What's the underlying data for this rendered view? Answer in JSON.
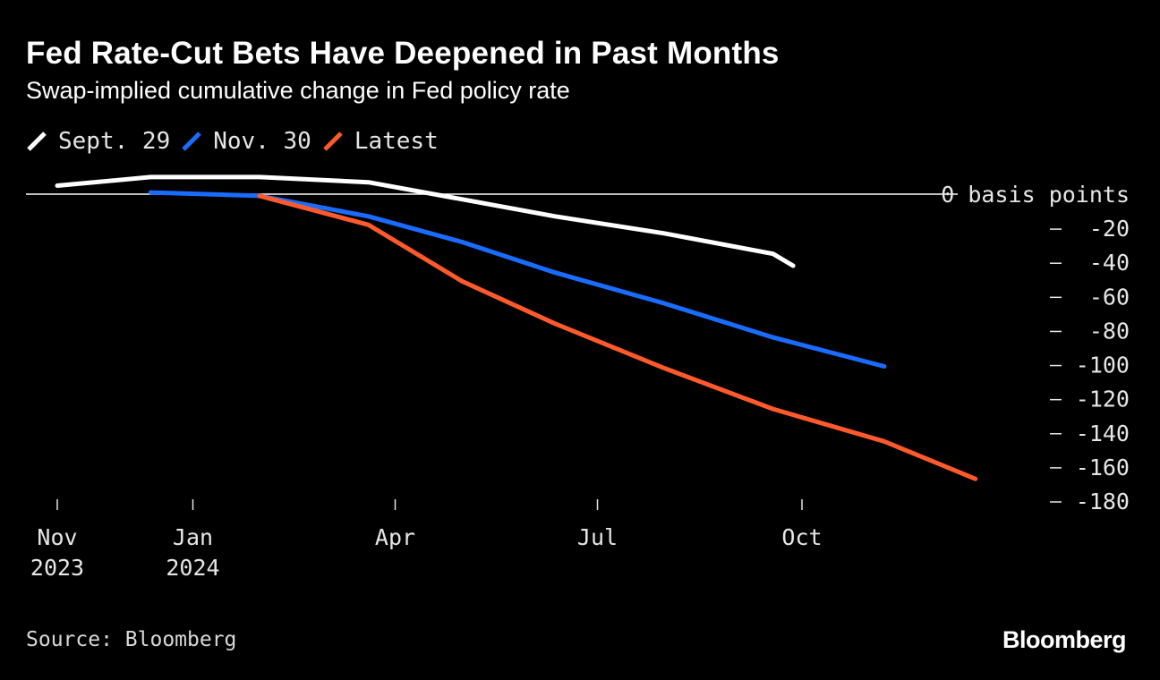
{
  "header": {
    "title": "Fed Rate-Cut Bets Have Deepened in Past Months",
    "subtitle": "Swap-implied cumulative change in Fed policy rate"
  },
  "footer": {
    "source": "Source: Bloomberg",
    "brand": "Bloomberg"
  },
  "chart_data": {
    "type": "line",
    "title": "Fed Rate-Cut Bets Have Deepened in Past Months",
    "subtitle": "Swap-implied cumulative change in Fed policy rate",
    "xlabel": "",
    "ylabel": "basis points",
    "y_unit_label": "basis points",
    "ylim": [
      -180,
      0
    ],
    "y_ticks": [
      0,
      -20,
      -40,
      -60,
      -80,
      -100,
      -120,
      -140,
      -160,
      -180
    ],
    "y_tick_labels": [
      "0 basis points",
      "-20",
      "-40",
      "-60",
      "-80",
      "-100",
      "-120",
      "-140",
      "-160",
      "-180"
    ],
    "x_range": [
      "2023-11-01",
      "2024-12-31"
    ],
    "x_ticks": [
      {
        "date": "2023-11-01",
        "label": "Nov",
        "label2": "2023"
      },
      {
        "date": "2024-01-01",
        "label": "Jan",
        "label2": "2024"
      },
      {
        "date": "2024-04-01",
        "label": "Apr",
        "label2": ""
      },
      {
        "date": "2024-07-01",
        "label": "Jul",
        "label2": ""
      },
      {
        "date": "2024-10-01",
        "label": "Oct",
        "label2": ""
      }
    ],
    "zero_line": 0,
    "legend_position": "top-left",
    "series": [
      {
        "name": "Sept. 29",
        "color": "#ffffff",
        "points": [
          {
            "x": "2023-11-01",
            "y": 5
          },
          {
            "x": "2023-12-13",
            "y": 10
          },
          {
            "x": "2024-01-31",
            "y": 10
          },
          {
            "x": "2024-03-20",
            "y": 7
          },
          {
            "x": "2024-05-01",
            "y": -3
          },
          {
            "x": "2024-06-12",
            "y": -13
          },
          {
            "x": "2024-07-31",
            "y": -23
          },
          {
            "x": "2024-09-18",
            "y": -35
          },
          {
            "x": "2024-09-27",
            "y": -42
          }
        ]
      },
      {
        "name": "Nov. 30",
        "color": "#1a6cff",
        "points": [
          {
            "x": "2023-12-13",
            "y": 1
          },
          {
            "x": "2024-01-31",
            "y": -1
          },
          {
            "x": "2024-03-20",
            "y": -13
          },
          {
            "x": "2024-05-01",
            "y": -28
          },
          {
            "x": "2024-06-12",
            "y": -46
          },
          {
            "x": "2024-07-31",
            "y": -64
          },
          {
            "x": "2024-09-18",
            "y": -84
          },
          {
            "x": "2024-11-07",
            "y": -101
          }
        ]
      },
      {
        "name": "Latest",
        "color": "#ff5a2b",
        "points": [
          {
            "x": "2024-01-31",
            "y": -1
          },
          {
            "x": "2024-03-20",
            "y": -18
          },
          {
            "x": "2024-05-01",
            "y": -51
          },
          {
            "x": "2024-06-12",
            "y": -76
          },
          {
            "x": "2024-07-31",
            "y": -102
          },
          {
            "x": "2024-09-18",
            "y": -126
          },
          {
            "x": "2024-11-07",
            "y": -145
          },
          {
            "x": "2024-12-18",
            "y": -167
          }
        ]
      }
    ]
  }
}
